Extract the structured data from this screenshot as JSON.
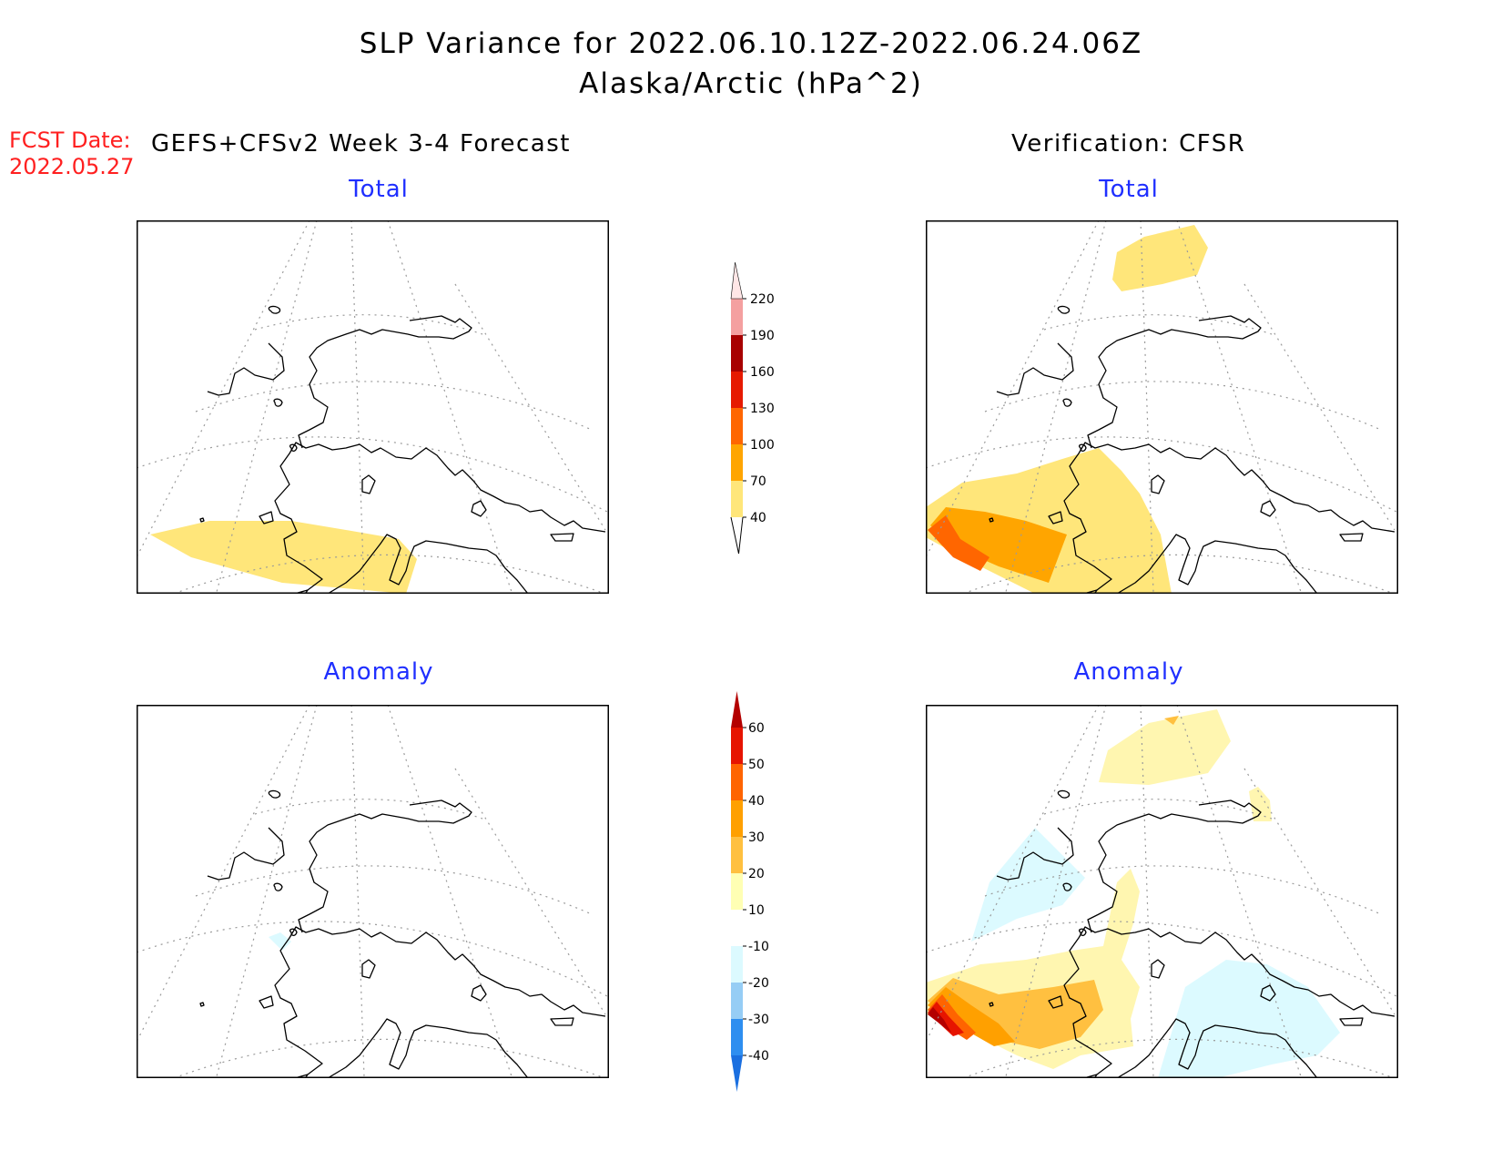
{
  "title": {
    "line1": "SLP Variance for 2022.06.10.12Z-2022.06.24.06Z",
    "line2": "Alaska/Arctic (hPa^2)"
  },
  "forecast_date": {
    "label": "FCST Date:",
    "value": "2022.05.27"
  },
  "left_header": "GEFS+CFSv2 Week 3-4 Forecast",
  "right_header": "Verification: CFSR",
  "panels": [
    {
      "id": "forecast-total",
      "title": "Total"
    },
    {
      "id": "verification-total",
      "title": "Total"
    },
    {
      "id": "forecast-anomaly",
      "title": "Anomaly"
    },
    {
      "id": "verification-anomaly",
      "title": "Anomaly"
    }
  ],
  "colorbars": {
    "total": {
      "levels": [
        "40",
        "70",
        "100",
        "130",
        "160",
        "190",
        "220"
      ],
      "colors": [
        "#ffe67a",
        "#ffa500",
        "#ff6600",
        "#e61a00",
        "#a80000",
        "#f4a0a0",
        "#ffe6e6"
      ]
    },
    "anomaly": {
      "levels": [
        "-40",
        "-30",
        "-20",
        "-10",
        "10",
        "20",
        "30",
        "40",
        "50",
        "60"
      ],
      "colors": [
        "#1a6fe0",
        "#2e8ef0",
        "#96cdf5",
        "#dcfaff",
        "#ffffff",
        "#ffffb4",
        "#ffc040",
        "#ffa000",
        "#ff6400",
        "#e61400",
        "#b40000"
      ]
    }
  },
  "field_colors": {
    "light_yellow": "#fff6b0",
    "yellow": "#ffe67a",
    "light_orange": "#ffc040",
    "orange": "#ffa500",
    "dark_orange": "#ff6600",
    "red": "#e61400",
    "dark_red": "#b40000",
    "light_cyan": "#dcfaff"
  }
}
